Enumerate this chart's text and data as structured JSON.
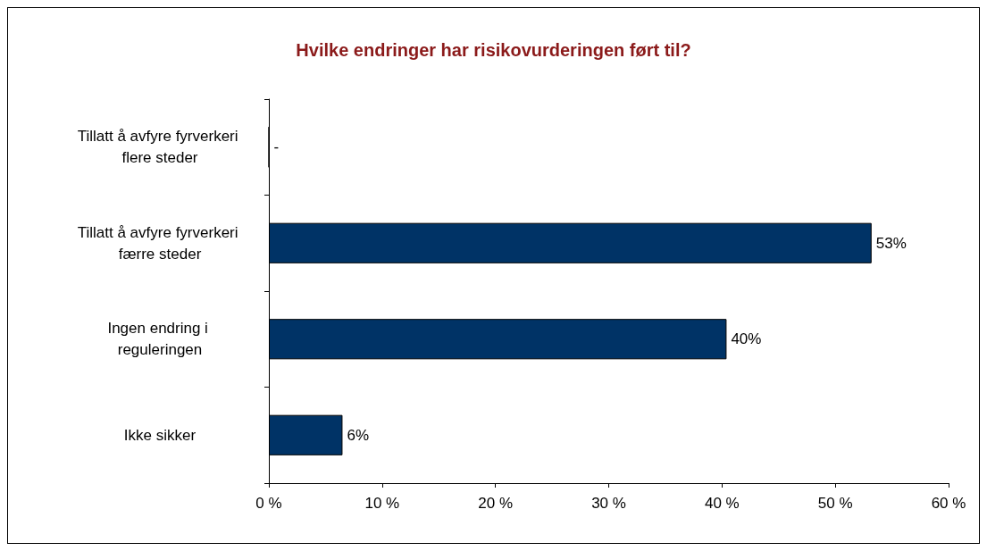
{
  "chart_data": {
    "type": "bar",
    "orientation": "horizontal",
    "title": "Hvilke endringer har risikovurderingen ført til?",
    "categories": [
      "Tillatt å avfyre fyrverkeri flere steder",
      "Tillatt å avfyre fyrverkeri færre steder",
      "Ingen endring i reguleringen",
      "Ikke sikker"
    ],
    "values": [
      0,
      53.2,
      40.4,
      6.5
    ],
    "value_labels": [
      "-",
      "53%",
      "40%",
      "6%"
    ],
    "color": "#003366",
    "xlim": [
      0,
      60
    ],
    "xticks": [
      {
        "value": 0,
        "label": "0 %"
      },
      {
        "value": 10,
        "label": "10 %"
      },
      {
        "value": 20,
        "label": "20 %"
      },
      {
        "value": 30,
        "label": "30 %"
      },
      {
        "value": 40,
        "label": "40 %"
      },
      {
        "value": 50,
        "label": "50 %"
      },
      {
        "value": 60,
        "label": "60 %"
      }
    ],
    "grid": false
  }
}
